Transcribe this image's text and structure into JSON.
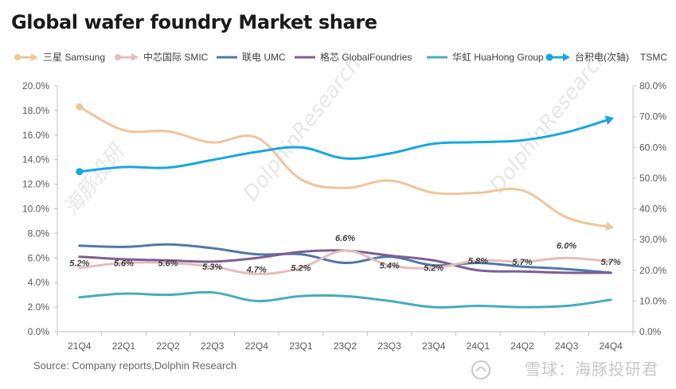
{
  "title": "Global wafer foundry Market share",
  "source": "Source: Company  reports,Dolphin  Research",
  "watermark": {
    "text": "雪球：海豚投研君",
    "background": [
      "海豚投研",
      "DolphinResearch"
    ]
  },
  "legend_extra": "TSMC",
  "chart_data": {
    "type": "line",
    "categories": [
      "21Q4",
      "22Q1",
      "22Q2",
      "22Q3",
      "22Q4",
      "23Q1",
      "23Q2",
      "23Q3",
      "23Q4",
      "24Q1",
      "24Q2",
      "24Q3",
      "24Q4"
    ],
    "y_left": {
      "range": [
        0,
        20
      ],
      "ticks": [
        "0.0%",
        "2.0%",
        "4.0%",
        "6.0%",
        "8.0%",
        "10.0%",
        "12.0%",
        "14.0%",
        "16.0%",
        "18.0%",
        "20.0%"
      ]
    },
    "y_right": {
      "range": [
        0,
        80
      ],
      "ticks": [
        "0.0%",
        "10.0%",
        "20.0%",
        "30.0%",
        "40.0%",
        "50.0%",
        "60.0%",
        "70.0%",
        "80.0%"
      ]
    },
    "grid": false,
    "legend_position": "top",
    "series": [
      {
        "name": "三星 Samsung",
        "axis": "left",
        "color": "#f2c49a",
        "values": [
          18.3,
          16.4,
          16.3,
          15.4,
          15.8,
          12.4,
          11.7,
          12.3,
          11.3,
          11.3,
          11.5,
          9.3,
          8.5
        ]
      },
      {
        "name": "中芯国际 SMIC",
        "axis": "left",
        "color": "#e6bcbc",
        "values": [
          5.2,
          5.6,
          5.6,
          5.3,
          4.7,
          5.2,
          6.6,
          5.4,
          5.2,
          5.8,
          5.7,
          6.0,
          5.7
        ],
        "labels": [
          "5.2%",
          "5.6%",
          "5.6%",
          "5.3%",
          "4.7%",
          "5.2%",
          "6.6%",
          "5.4%",
          "5.2%",
          "5.8%",
          "5.7%",
          "6.0%",
          "5.7%"
        ]
      },
      {
        "name": "联电 UMC",
        "axis": "left",
        "color": "#4f78a8",
        "values": [
          7.0,
          6.9,
          7.1,
          6.8,
          6.3,
          6.3,
          5.6,
          6.1,
          5.4,
          5.6,
          5.3,
          5.1,
          4.8
        ]
      },
      {
        "name": "格芯 GlobalFoundries",
        "axis": "left",
        "color": "#7d5f94",
        "values": [
          6.1,
          5.9,
          5.8,
          5.7,
          6.0,
          6.5,
          6.6,
          6.2,
          5.8,
          5.0,
          4.9,
          4.8,
          4.8
        ]
      },
      {
        "name": "华虹 HuaHong Group",
        "axis": "left",
        "color": "#4aabbc",
        "values": [
          2.8,
          3.1,
          3.0,
          3.2,
          2.5,
          2.9,
          2.9,
          2.5,
          2.0,
          2.1,
          2.0,
          2.1,
          2.6
        ]
      },
      {
        "name": "台积电(次轴)",
        "axis": "right",
        "color": "#1aa6dc",
        "values": [
          52.1,
          53.6,
          53.4,
          55.9,
          58.5,
          60.0,
          56.4,
          58.0,
          61.2,
          61.7,
          62.3,
          64.9,
          69.3
        ]
      }
    ]
  }
}
